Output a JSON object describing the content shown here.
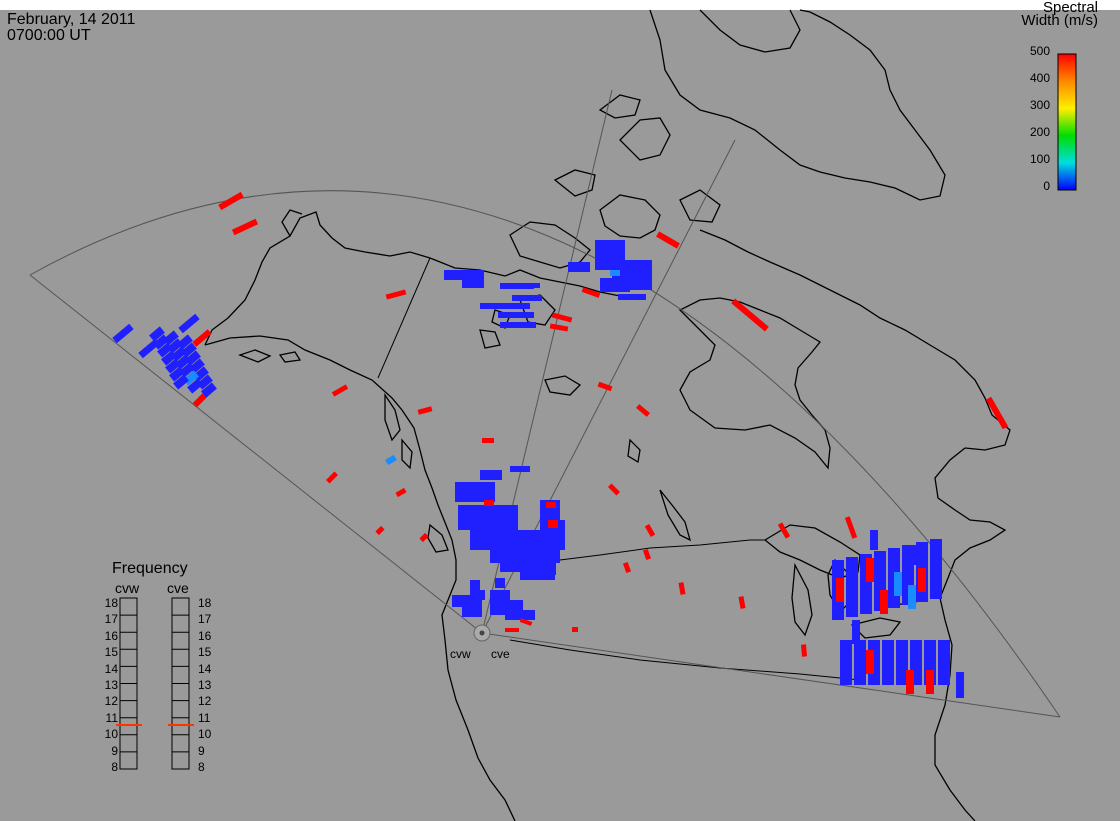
{
  "header": {
    "date": "February, 14 2011",
    "time": "0700:00 UT"
  },
  "colorbar": {
    "title_line1": "Spectral",
    "title_line2": "Width (m/s)",
    "ticks": [
      "500",
      "400",
      "300",
      "200",
      "100",
      "0"
    ],
    "range": [
      0,
      500
    ],
    "colors": [
      "#ff0000",
      "#ff8800",
      "#ffee00",
      "#00dd00",
      "#00dddd",
      "#0000ff"
    ]
  },
  "frequency": {
    "title": "Frequency",
    "radars": [
      "cvw",
      "cve"
    ],
    "ticks": [
      "18",
      "17",
      "16",
      "15",
      "14",
      "13",
      "12",
      "11",
      "10",
      "9",
      "8"
    ],
    "current_mhz": 10.8,
    "marker_color": "#ff3300"
  },
  "radar_sites": [
    "cvw",
    "cve"
  ],
  "colors": {
    "background": "#9a9a9a",
    "coastline": "#000000",
    "fov": "#555555",
    "low_width": "#2020ff",
    "mid_width": "#1a8cff",
    "high_width": "#ff0000"
  }
}
